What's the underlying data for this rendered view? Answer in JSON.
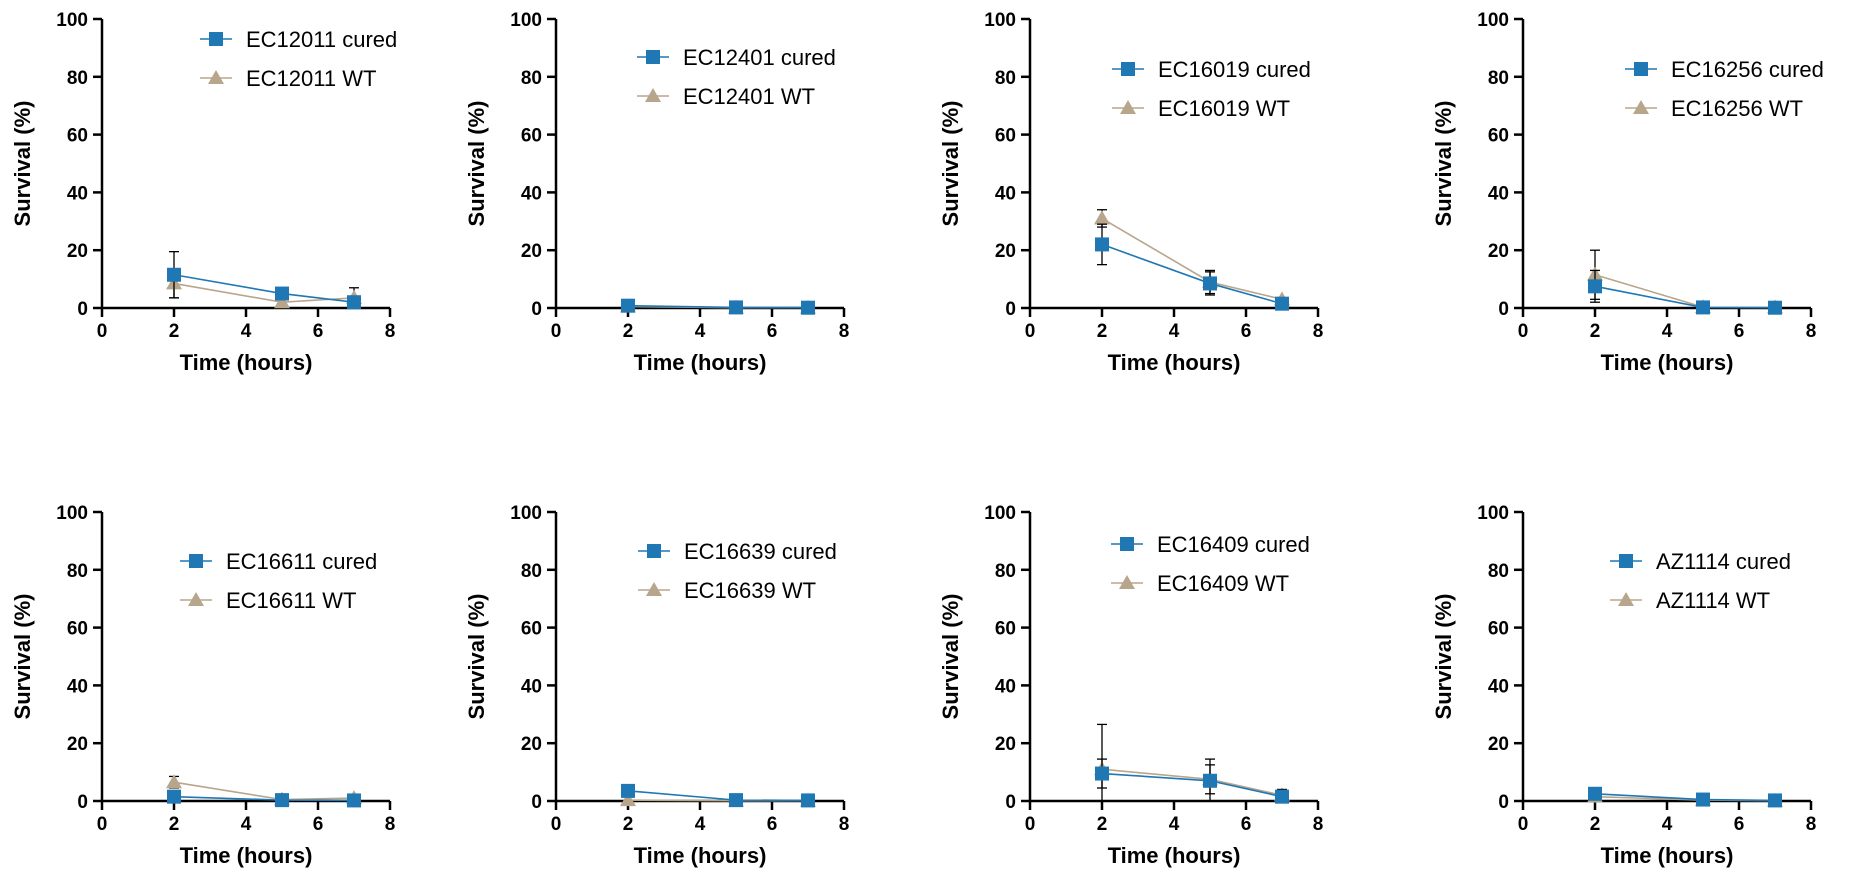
{
  "colors": {
    "cured": "#1f77b4",
    "wt": "#b8a68c",
    "axis": "#000000"
  },
  "chart_data": [
    {
      "type": "line",
      "xlabel": "Time (hours)",
      "ylabel": "Survival (%)",
      "xlim": [
        0,
        8
      ],
      "ylim": [
        0,
        100
      ],
      "xticks": [
        "0",
        "2",
        "4",
        "6",
        "8"
      ],
      "yticks": [
        "0",
        "20",
        "40",
        "60",
        "80",
        "100"
      ],
      "legend_position": "top-right",
      "series": [
        {
          "name": "EC12011 cured",
          "marker": "square",
          "x": [
            2,
            5,
            7
          ],
          "y": [
            11.5,
            5,
            2
          ],
          "err": [
            8,
            0,
            0
          ]
        },
        {
          "name": "EC12011 WT",
          "marker": "triangle",
          "x": [
            2,
            5,
            7
          ],
          "y": [
            8.5,
            2,
            3.5
          ],
          "err": [
            5,
            0,
            3.5
          ]
        }
      ]
    },
    {
      "type": "line",
      "xlabel": "Time (hours)",
      "ylabel": "Survival (%)",
      "xlim": [
        0,
        8
      ],
      "ylim": [
        0,
        100
      ],
      "xticks": [
        "0",
        "2",
        "4",
        "6",
        "8"
      ],
      "yticks": [
        "0",
        "20",
        "40",
        "60",
        "80",
        "100"
      ],
      "legend_position": "top-right",
      "series": [
        {
          "name": "EC12401 cured",
          "marker": "square",
          "x": [
            2,
            5,
            7
          ],
          "y": [
            0.8,
            0.2,
            0.1
          ],
          "err": [
            0,
            0,
            0
          ]
        },
        {
          "name": "EC12401 WT",
          "marker": "triangle",
          "x": [
            2,
            5,
            7
          ],
          "y": [
            0.5,
            0.1,
            0.1
          ],
          "err": [
            0,
            0,
            0
          ]
        }
      ]
    },
    {
      "type": "line",
      "xlabel": "Time (hours)",
      "ylabel": "Survival (%)",
      "xlim": [
        0,
        8
      ],
      "ylim": [
        0,
        100
      ],
      "xticks": [
        "0",
        "2",
        "4",
        "6",
        "8"
      ],
      "yticks": [
        "0",
        "20",
        "40",
        "60",
        "80",
        "100"
      ],
      "legend_position": "top-right",
      "series": [
        {
          "name": "EC16019 cured",
          "marker": "square",
          "x": [
            2,
            5,
            7
          ],
          "y": [
            22,
            8.5,
            1.5
          ],
          "err": [
            7,
            4,
            0
          ]
        },
        {
          "name": "EC16019 WT",
          "marker": "triangle",
          "x": [
            2,
            5,
            7
          ],
          "y": [
            31,
            9,
            3
          ],
          "err": [
            3,
            4,
            0
          ]
        }
      ]
    },
    {
      "type": "line",
      "xlabel": "Time (hours)",
      "ylabel": "Survival (%)",
      "xlim": [
        0,
        8
      ],
      "ylim": [
        0,
        100
      ],
      "xticks": [
        "0",
        "2",
        "4",
        "6",
        "8"
      ],
      "yticks": [
        "0",
        "20",
        "40",
        "60",
        "80",
        "100"
      ],
      "legend_position": "top-right",
      "series": [
        {
          "name": "EC16256 cured",
          "marker": "square",
          "x": [
            2,
            5,
            7
          ],
          "y": [
            7.5,
            0.2,
            0.1
          ],
          "err": [
            5.5,
            0,
            0
          ]
        },
        {
          "name": "EC16256 WT",
          "marker": "triangle",
          "x": [
            2,
            5,
            7
          ],
          "y": [
            11.5,
            0.3,
            0.2
          ],
          "err": [
            8.5,
            0,
            0
          ]
        }
      ]
    },
    {
      "type": "line",
      "xlabel": "Time (hours)",
      "ylabel": "Survival (%)",
      "xlim": [
        0,
        8
      ],
      "ylim": [
        0,
        100
      ],
      "xticks": [
        "0",
        "2",
        "4",
        "6",
        "8"
      ],
      "yticks": [
        "0",
        "20",
        "40",
        "60",
        "80",
        "100"
      ],
      "legend_position": "top-right",
      "series": [
        {
          "name": "EC16611 cured",
          "marker": "square",
          "x": [
            2,
            5,
            7
          ],
          "y": [
            1.5,
            0.3,
            0.2
          ],
          "err": [
            0,
            0,
            0
          ]
        },
        {
          "name": "EC16611 WT",
          "marker": "triangle",
          "x": [
            2,
            5,
            7
          ],
          "y": [
            6.5,
            0.5,
            1
          ],
          "err": [
            2,
            0,
            0.8
          ]
        }
      ]
    },
    {
      "type": "line",
      "xlabel": "Time (hours)",
      "ylabel": "Survival (%)",
      "xlim": [
        0,
        8
      ],
      "ylim": [
        0,
        100
      ],
      "xticks": [
        "0",
        "2",
        "4",
        "6",
        "8"
      ],
      "yticks": [
        "0",
        "20",
        "40",
        "60",
        "80",
        "100"
      ],
      "legend_position": "top-right",
      "series": [
        {
          "name": "EC16639 cured",
          "marker": "square",
          "x": [
            2,
            5,
            7
          ],
          "y": [
            3.5,
            0.3,
            0.2
          ],
          "err": [
            2,
            0,
            0
          ]
        },
        {
          "name": "EC16639 WT",
          "marker": "triangle",
          "x": [
            2,
            5,
            7
          ],
          "y": [
            0.3,
            0.1,
            0.1
          ],
          "err": [
            0,
            0,
            0
          ]
        }
      ]
    },
    {
      "type": "line",
      "xlabel": "Time (hours)",
      "ylabel": "Survival (%)",
      "xlim": [
        0,
        8
      ],
      "ylim": [
        0,
        100
      ],
      "xticks": [
        "0",
        "2",
        "4",
        "6",
        "8"
      ],
      "yticks": [
        "0",
        "20",
        "40",
        "60",
        "80",
        "100"
      ],
      "legend_position": "top-right",
      "series": [
        {
          "name": "EC16409 cured",
          "marker": "square",
          "x": [
            2,
            5,
            7
          ],
          "y": [
            9.5,
            7,
            1.5
          ],
          "err": [
            5,
            7.5,
            2.5
          ]
        },
        {
          "name": "EC16409 WT",
          "marker": "triangle",
          "x": [
            2,
            5,
            7
          ],
          "y": [
            11,
            7.5,
            2
          ],
          "err": [
            15.5,
            5,
            0
          ]
        }
      ]
    },
    {
      "type": "line",
      "xlabel": "Time (hours)",
      "ylabel": "Survival (%)",
      "xlim": [
        0,
        8
      ],
      "ylim": [
        0,
        100
      ],
      "xticks": [
        "0",
        "2",
        "4",
        "6",
        "8"
      ],
      "yticks": [
        "0",
        "20",
        "40",
        "60",
        "80",
        "100"
      ],
      "legend_position": "top-right",
      "series": [
        {
          "name": "AZ1114 cured",
          "marker": "square",
          "x": [
            2,
            5,
            7
          ],
          "y": [
            2.5,
            0.5,
            0.2
          ],
          "err": [
            0,
            0,
            0
          ]
        },
        {
          "name": "AZ1114 WT",
          "marker": "triangle",
          "x": [
            2,
            5,
            7
          ],
          "y": [
            1.5,
            0.3,
            0.1
          ],
          "err": [
            0,
            0,
            0
          ]
        }
      ]
    }
  ]
}
